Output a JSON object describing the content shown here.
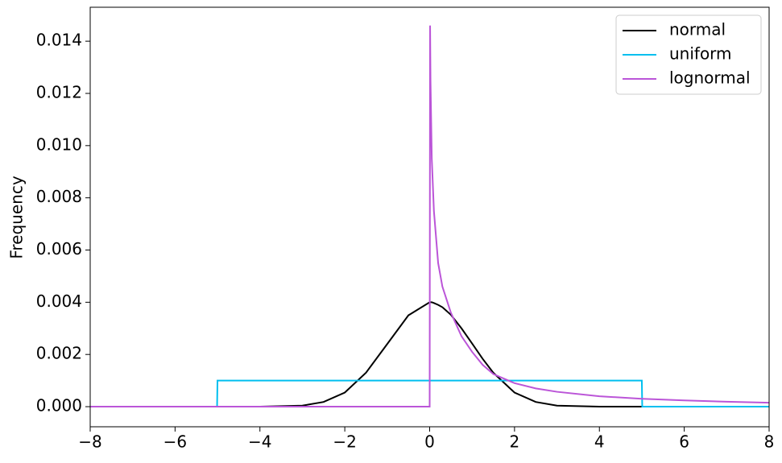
{
  "chart_data": {
    "type": "line",
    "ylabel": "Frequency",
    "x": [
      -8,
      -5.01,
      -5,
      -4,
      -3,
      -2.5,
      -2,
      -1.5,
      -1,
      -0.5,
      0,
      0.01,
      0.02,
      0.05,
      0.1,
      0.2,
      0.3,
      0.5,
      0.75,
      1,
      1.25,
      1.5,
      2,
      2.5,
      3,
      4,
      5,
      5.01,
      6,
      7,
      8
    ],
    "series": [
      {
        "name": "normal",
        "color": "#000000",
        "values": [
          0,
          0,
          0,
          1e-06,
          4e-05,
          0.00018,
          0.00054,
          0.0013,
          0.0024,
          0.0035,
          0.004,
          0.004,
          0.004,
          0.004,
          0.00397,
          0.0039,
          0.00381,
          0.00352,
          0.003,
          0.00242,
          0.00183,
          0.0013,
          0.00054,
          0.00018,
          4e-05,
          1e-06,
          0,
          0,
          0,
          0,
          0
        ]
      },
      {
        "name": "uniform",
        "color": "#00bfef",
        "values": [
          0,
          0,
          0.001,
          0.001,
          0.001,
          0.001,
          0.001,
          0.001,
          0.001,
          0.001,
          0.001,
          0.001,
          0.001,
          0.001,
          0.001,
          0.001,
          0.001,
          0.001,
          0.001,
          0.001,
          0.001,
          0.001,
          0.001,
          0.001,
          0.001,
          0.001,
          0.001,
          0,
          0,
          0,
          0
        ]
      },
      {
        "name": "lognormal",
        "color": "#bb55d8",
        "values": [
          0,
          0,
          0,
          0,
          0,
          0,
          0,
          0,
          0,
          0,
          0,
          0.0146,
          0.0125,
          0.0095,
          0.0075,
          0.0055,
          0.0046,
          0.0036,
          0.0027,
          0.0021,
          0.0016,
          0.00125,
          0.0009,
          0.0007,
          0.00057,
          0.0004,
          0.0003,
          0.0003,
          0.00024,
          0.00019,
          0.00015
        ]
      }
    ],
    "xlim": [
      -8,
      8
    ],
    "xticks": [
      {
        "value": -8,
        "label": "−8"
      },
      {
        "value": -6,
        "label": "−6"
      },
      {
        "value": -4,
        "label": "−4"
      },
      {
        "value": -2,
        "label": "−2"
      },
      0,
      2,
      4,
      6,
      8
    ],
    "ylim": [
      -0.00077,
      0.0153
    ],
    "yticks": [
      {
        "value": 0,
        "label": "0.000"
      },
      {
        "value": 0.002,
        "label": "0.002"
      },
      {
        "value": 0.004,
        "label": "0.004"
      },
      {
        "value": 0.006,
        "label": "0.006"
      },
      {
        "value": 0.008,
        "label": "0.008"
      },
      {
        "value": 0.01,
        "label": "0.010"
      },
      {
        "value": 0.012,
        "label": "0.012"
      },
      {
        "value": 0.014,
        "label": "0.014"
      }
    ],
    "legend": "upper right",
    "grid": false
  }
}
